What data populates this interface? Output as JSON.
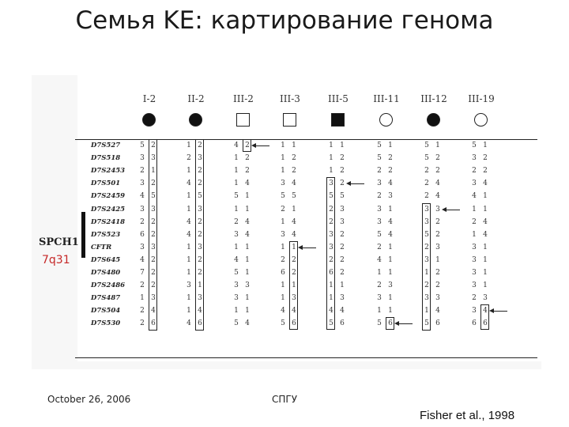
{
  "title": "Семья KE: картирование генома",
  "figure": {
    "individuals": [
      {
        "label": "I-2",
        "shape": "circle",
        "filled": true
      },
      {
        "label": "II-2",
        "shape": "circle",
        "filled": true
      },
      {
        "label": "III-2",
        "shape": "square",
        "filled": false
      },
      {
        "label": "III-3",
        "shape": "square",
        "filled": false
      },
      {
        "label": "III-5",
        "shape": "square",
        "filled": true
      },
      {
        "label": "III-11",
        "shape": "circle",
        "filled": false
      },
      {
        "label": "III-12",
        "shape": "circle",
        "filled": true
      },
      {
        "label": "III-19",
        "shape": "circle",
        "filled": false
      }
    ],
    "markers": [
      "D7S527",
      "D7S518",
      "D7S2453",
      "D7S501",
      "D7S2459",
      "D7S2425",
      "D7S2418",
      "D7S523",
      "CFTR",
      "D7S645",
      "D7S480",
      "D7S2486",
      "D7S487",
      "D7S504",
      "D7S530"
    ],
    "genotypes": [
      [
        [
          "5",
          "2"
        ],
        [
          "3",
          "3"
        ],
        [
          "2",
          "1"
        ],
        [
          "3",
          "2"
        ],
        [
          "4",
          "5"
        ],
        [
          "3",
          "3"
        ],
        [
          "2",
          "2"
        ],
        [
          "6",
          "2"
        ],
        [
          "3",
          "3"
        ],
        [
          "4",
          "2"
        ],
        [
          "7",
          "2"
        ],
        [
          "2",
          "2"
        ],
        [
          "1",
          "3"
        ],
        [
          "2",
          "4"
        ],
        [
          "2",
          "6"
        ]
      ],
      [
        [
          "1",
          "2"
        ],
        [
          "2",
          "3"
        ],
        [
          "1",
          "2"
        ],
        [
          "4",
          "2"
        ],
        [
          "1",
          "5"
        ],
        [
          "1",
          "3"
        ],
        [
          "4",
          "2"
        ],
        [
          "4",
          "2"
        ],
        [
          "1",
          "3"
        ],
        [
          "1",
          "2"
        ],
        [
          "1",
          "2"
        ],
        [
          "3",
          "1"
        ],
        [
          "1",
          "3"
        ],
        [
          "1",
          "4"
        ],
        [
          "4",
          "6"
        ]
      ],
      [
        [
          "4",
          "2"
        ],
        [
          "1",
          "2"
        ],
        [
          "1",
          "2"
        ],
        [
          "1",
          "4"
        ],
        [
          "5",
          "1"
        ],
        [
          "1",
          "1"
        ],
        [
          "2",
          "4"
        ],
        [
          "3",
          "4"
        ],
        [
          "1",
          "1"
        ],
        [
          "4",
          "1"
        ],
        [
          "5",
          "1"
        ],
        [
          "3",
          "3"
        ],
        [
          "3",
          "1"
        ],
        [
          "1",
          "1"
        ],
        [
          "5",
          "4"
        ]
      ],
      [
        [
          "1",
          "1"
        ],
        [
          "1",
          "2"
        ],
        [
          "1",
          "2"
        ],
        [
          "3",
          "4"
        ],
        [
          "5",
          "5"
        ],
        [
          "2",
          "1"
        ],
        [
          "1",
          "4"
        ],
        [
          "3",
          "4"
        ],
        [
          "1",
          "1"
        ],
        [
          "2",
          "2"
        ],
        [
          "6",
          "2"
        ],
        [
          "1",
          "1"
        ],
        [
          "1",
          "3"
        ],
        [
          "4",
          "4"
        ],
        [
          "5",
          "6"
        ]
      ],
      [
        [
          "1",
          "1"
        ],
        [
          "1",
          "2"
        ],
        [
          "1",
          "2"
        ],
        [
          "3",
          "2"
        ],
        [
          "5",
          "5"
        ],
        [
          "2",
          "3"
        ],
        [
          "2",
          "3"
        ],
        [
          "3",
          "2"
        ],
        [
          "3",
          "2"
        ],
        [
          "2",
          "2"
        ],
        [
          "6",
          "2"
        ],
        [
          "1",
          "1"
        ],
        [
          "1",
          "3"
        ],
        [
          "4",
          "4"
        ],
        [
          "5",
          "6"
        ]
      ],
      [
        [
          "5",
          "1"
        ],
        [
          "5",
          "2"
        ],
        [
          "2",
          "2"
        ],
        [
          "3",
          "4"
        ],
        [
          "2",
          "3"
        ],
        [
          "3",
          "1"
        ],
        [
          "3",
          "4"
        ],
        [
          "5",
          "4"
        ],
        [
          "2",
          "1"
        ],
        [
          "4",
          "1"
        ],
        [
          "1",
          "1"
        ],
        [
          "2",
          "3"
        ],
        [
          "3",
          "1"
        ],
        [
          "1",
          "1"
        ],
        [
          "5",
          "6"
        ]
      ],
      [
        [
          "5",
          "1"
        ],
        [
          "5",
          "2"
        ],
        [
          "2",
          "2"
        ],
        [
          "2",
          "4"
        ],
        [
          "2",
          "4"
        ],
        [
          "3",
          "3"
        ],
        [
          "3",
          "2"
        ],
        [
          "5",
          "2"
        ],
        [
          "2",
          "3"
        ],
        [
          "3",
          "1"
        ],
        [
          "1",
          "2"
        ],
        [
          "2",
          "2"
        ],
        [
          "3",
          "3"
        ],
        [
          "1",
          "4"
        ],
        [
          "5",
          "6"
        ]
      ],
      [
        [
          "5",
          "1"
        ],
        [
          "3",
          "2"
        ],
        [
          "2",
          "2"
        ],
        [
          "3",
          "4"
        ],
        [
          "4",
          "1"
        ],
        [
          "1",
          "1"
        ],
        [
          "2",
          "4"
        ],
        [
          "1",
          "4"
        ],
        [
          "3",
          "1"
        ],
        [
          "3",
          "1"
        ],
        [
          "3",
          "1"
        ],
        [
          "3",
          "1"
        ],
        [
          "2",
          "3"
        ],
        [
          "3",
          "4"
        ],
        [
          "6",
          "6"
        ]
      ]
    ],
    "locus_label": "SPCH1",
    "band_label": "7q31"
  },
  "footer": {
    "date": "October 26, 2006",
    "center": "СПГУ",
    "citation": "Fisher et al., 1998"
  }
}
